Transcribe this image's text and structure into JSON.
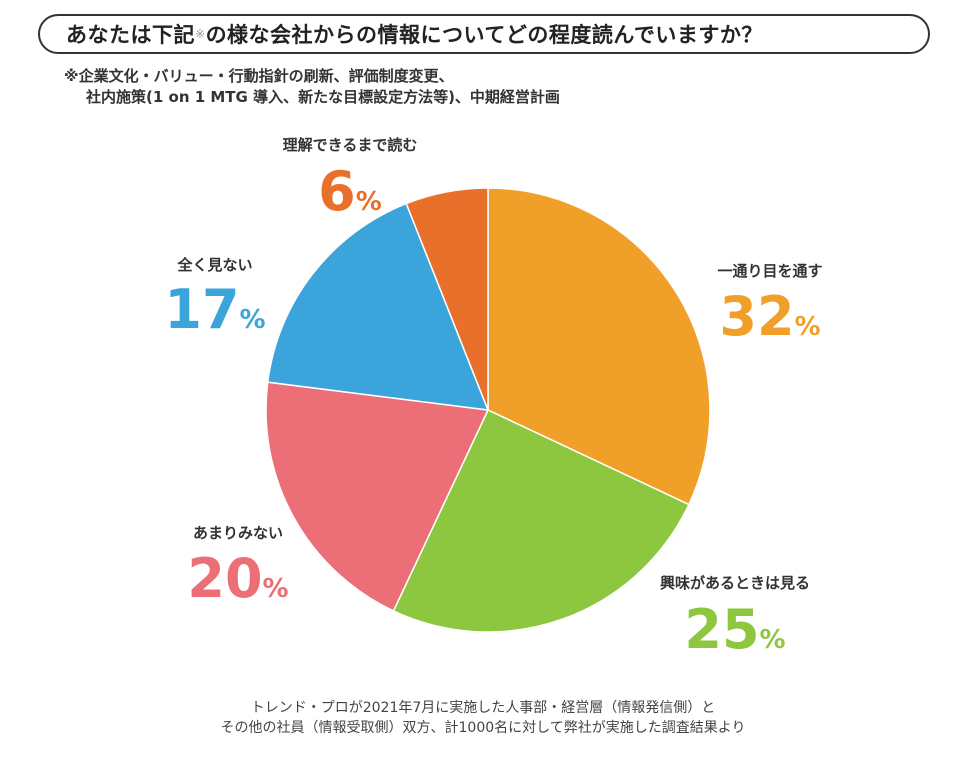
{
  "title": "あなたは下記",
  "title_mark": "※",
  "title_rest": "の様な会社からの情報についてどの程度読んでいますか？",
  "note": {
    "line1": "※企業文化・バリュー・行動指針の刷新、評価制度変更、",
    "line2": "社内施策(1 on 1 MTG 導入、新たな目標設定方法等)、中期経営計画"
  },
  "chart_data": {
    "type": "pie",
    "start_angle_deg": 0,
    "direction": "clockwise",
    "unit": "%",
    "slices": [
      {
        "label": "一通り目を通す",
        "value": 32,
        "color": "#F0A028"
      },
      {
        "label": "興味があるときは見る",
        "value": 25,
        "color": "#8DC63F"
      },
      {
        "label": "あまりみない",
        "value": 20,
        "color": "#EC6E77"
      },
      {
        "label": "全く見ない",
        "value": 17,
        "color": "#3BA5DB"
      },
      {
        "label": "理解できるまで読む",
        "value": 6,
        "color": "#E8702A"
      }
    ]
  },
  "source": {
    "line1": "トレンド・プロが2021年7月に実施した人事部・経営層（情報発信側）と",
    "line2": "その他の社員（情報受取側）双方、計1000名に対して弊社が実施した調査結果より"
  }
}
